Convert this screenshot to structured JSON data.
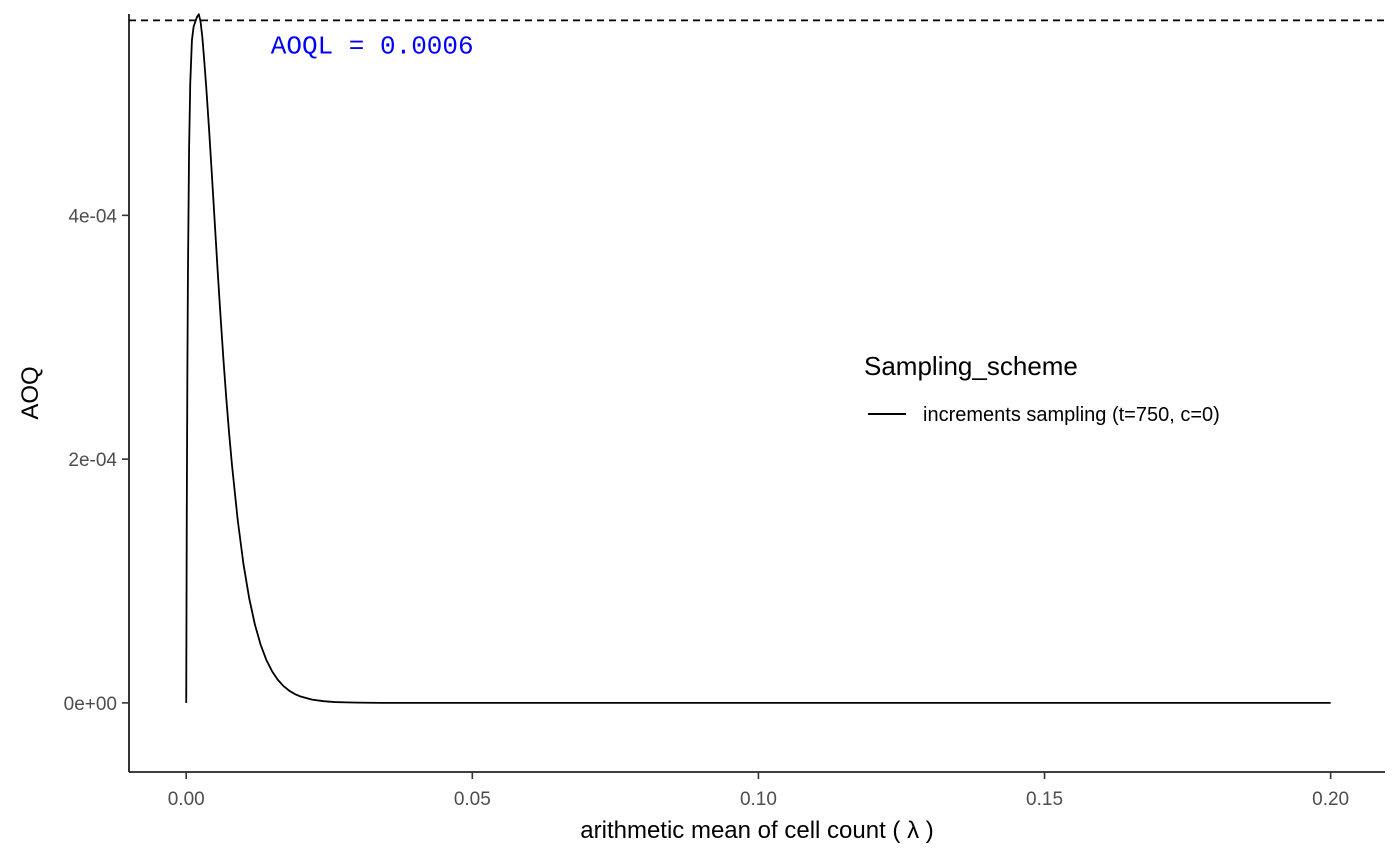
{
  "chart_data": {
    "type": "line",
    "title": "",
    "xlabel": "arithmetic mean of cell count ( λ )",
    "ylabel": "AOQ",
    "xlim": [
      -0.01,
      0.2095
    ],
    "ylim": [
      -5.67e-05,
      0.0005652
    ],
    "x_ticks": [
      0.0,
      0.05,
      0.1,
      0.15,
      0.2
    ],
    "x_tick_labels": [
      "0.00",
      "0.05",
      "0.10",
      "0.15",
      "0.20"
    ],
    "y_ticks": [
      0,
      0.0002,
      0.0004
    ],
    "y_tick_labels": [
      "0e+00",
      "2e-04",
      "4e-04"
    ],
    "grid": false,
    "legend": {
      "title": "Sampling_scheme",
      "position": "right",
      "entries": [
        "increments sampling (t=750, c=0)"
      ]
    },
    "reference_line": {
      "y": 0.00056,
      "style": "dashed",
      "color": "#000000"
    },
    "annotation": {
      "text": "AOQL = 0.0006",
      "x": 0.0325,
      "y": 0.00054,
      "color": "#0000FF"
    },
    "series": [
      {
        "name": "increments sampling (t=750, c=0)",
        "color": "#000000",
        "x": [
          0,
          0.0001,
          0.0002,
          0.0003,
          0.0005,
          0.0007,
          0.001,
          0.0013,
          0.0016,
          0.0019,
          0.0022,
          0.0025,
          0.0028,
          0.0031,
          0.0035,
          0.004,
          0.0045,
          0.005,
          0.0055,
          0.006,
          0.0065,
          0.007,
          0.0075,
          0.008,
          0.009,
          0.01,
          0.011,
          0.012,
          0.013,
          0.014,
          0.015,
          0.016,
          0.017,
          0.018,
          0.019,
          0.02,
          0.022,
          0.024,
          0.026,
          0.028,
          0.03,
          0.035,
          0.04,
          0.05,
          0.06,
          0.08,
          0.1,
          0.12,
          0.14,
          0.16,
          0.18,
          0.2
        ],
        "y": [
          0,
          0.000158,
          0.000271,
          0.000352,
          0.000454,
          0.000508,
          0.000544,
          0.000555,
          0.000559,
          0.000563,
          0.000565,
          0.000559,
          0.000547,
          0.00053,
          0.000505,
          0.00047,
          0.000432,
          0.000393,
          0.000354,
          0.000317,
          0.000282,
          0.00025,
          0.000221,
          0.000195,
          0.00015,
          0.000114,
          8.6e-05,
          6.43e-05,
          4.78e-05,
          3.53e-05,
          2.6e-05,
          1.9e-05,
          1.38e-05,
          1e-05,
          7.2e-06,
          5.2e-06,
          2.7e-06,
          1.4e-06,
          7e-07,
          4e-07,
          2e-07,
          0,
          0,
          0,
          0,
          0,
          0,
          0,
          0,
          0,
          0,
          0
        ]
      }
    ]
  }
}
